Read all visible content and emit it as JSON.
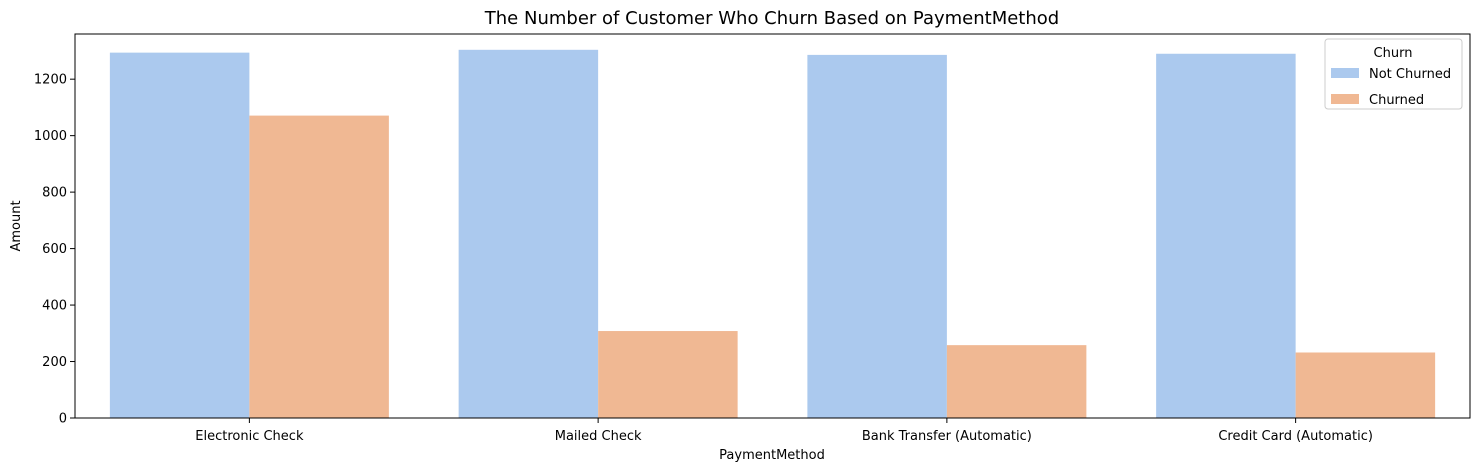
{
  "chart_data": {
    "type": "bar",
    "title": "The Number of Customer Who Churn Based on PaymentMethod",
    "xlabel": "PaymentMethod",
    "ylabel": "Amount",
    "categories": [
      "Electronic Check",
      "Mailed Check",
      "Bank Transfer (Automatic)",
      "Credit Card (Automatic)"
    ],
    "series": [
      {
        "name": "Not Churned",
        "color": "#abc9ee",
        "values": [
          1294,
          1304,
          1286,
          1290
        ]
      },
      {
        "name": "Churned",
        "color": "#f0b893",
        "values": [
          1071,
          308,
          258,
          232
        ]
      }
    ],
    "ylim": [
      0,
      1360
    ],
    "yticks": [
      0,
      200,
      400,
      600,
      800,
      1000,
      1200
    ],
    "legend": {
      "title": "Churn",
      "placement": "top-right"
    },
    "grid": false
  }
}
